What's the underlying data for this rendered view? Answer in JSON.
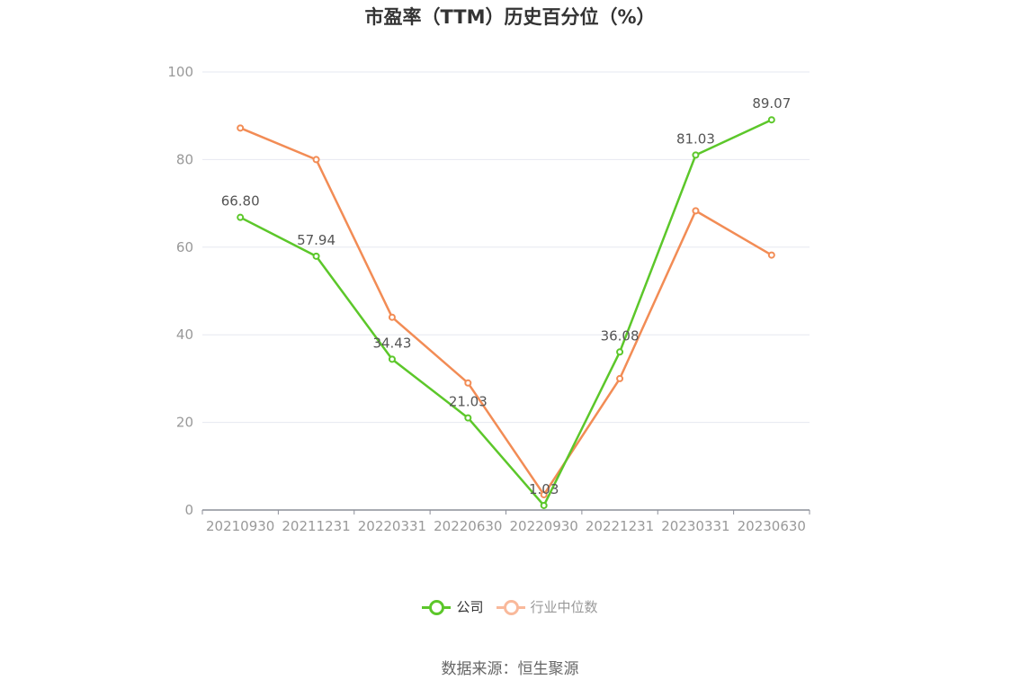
{
  "chart_data": {
    "type": "line",
    "title": "市盈率（TTM）历史百分位（%）",
    "categories": [
      "20210930",
      "20211231",
      "20220331",
      "20220630",
      "20220930",
      "20221231",
      "20230331",
      "20230630"
    ],
    "series": [
      {
        "name": "公司",
        "color": "#5cc72a",
        "values": [
          66.8,
          57.94,
          34.43,
          21.03,
          1.03,
          36.08,
          81.03,
          89.07
        ],
        "labels": [
          "66.80",
          "57.94",
          "34.43",
          "21.03",
          "1.03",
          "36.08",
          "81.03",
          "89.07"
        ]
      },
      {
        "name": "行业中位数",
        "color": "#f28c55",
        "legend_color": "#f9b99b",
        "values": [
          87.2,
          80.0,
          44.0,
          29.0,
          3.5,
          30.0,
          68.3,
          58.2
        ]
      }
    ],
    "ylim": [
      0,
      100
    ],
    "yticks": [
      "0",
      "20",
      "40",
      "60",
      "80",
      "100"
    ],
    "grid": true,
    "legend_position": "bottom"
  },
  "source_text": "数据来源：恒生聚源"
}
